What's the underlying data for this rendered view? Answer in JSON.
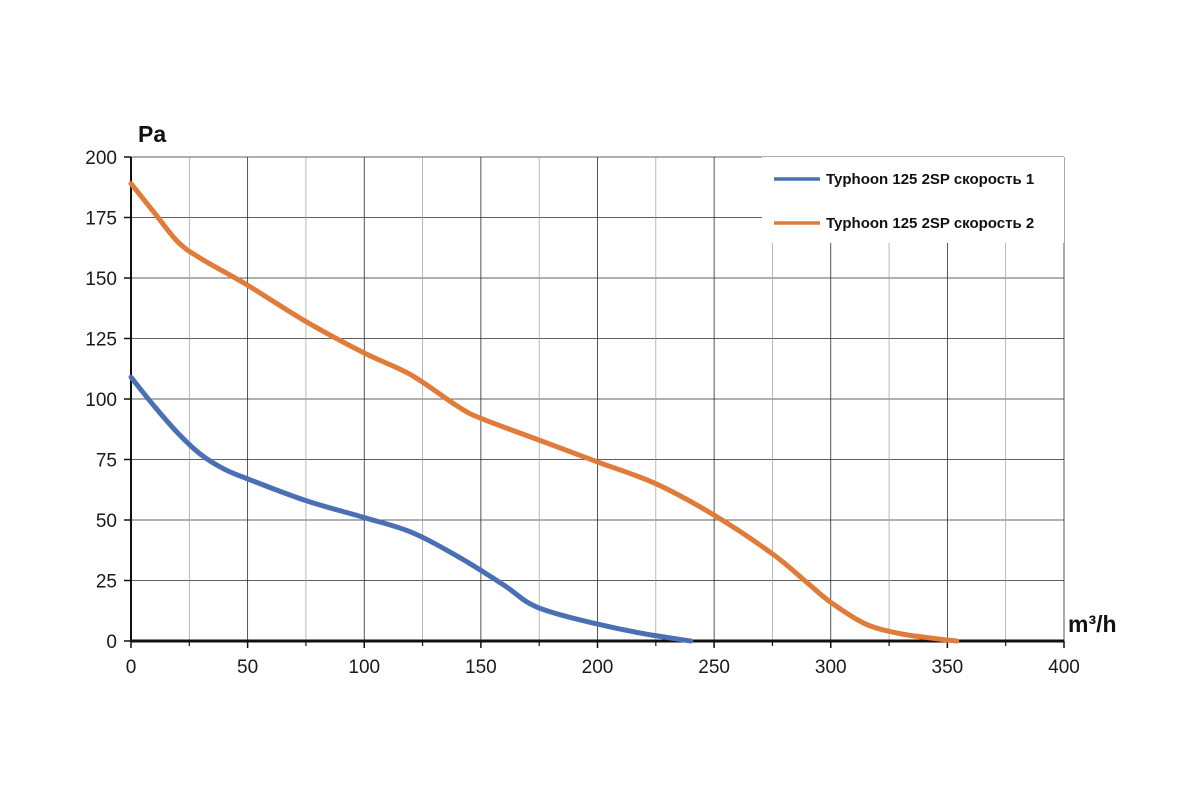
{
  "chart_data": {
    "type": "line",
    "xlabel": "m³/h",
    "ylabel": "Pa",
    "xlim": [
      0,
      400
    ],
    "ylim": [
      0,
      200
    ],
    "x_ticks": [
      0,
      50,
      100,
      150,
      200,
      250,
      300,
      350,
      400
    ],
    "y_ticks": [
      0,
      25,
      50,
      75,
      100,
      125,
      150,
      175,
      200
    ],
    "grid": true,
    "legend_position": "top-right",
    "series": [
      {
        "name": "Typhoon 125 2SP скорость 1",
        "color": "#4a6fb5",
        "points": [
          [
            0,
            109
          ],
          [
            10,
            97
          ],
          [
            20,
            86
          ],
          [
            30,
            77
          ],
          [
            40,
            71
          ],
          [
            50,
            67
          ],
          [
            75,
            58
          ],
          [
            100,
            51
          ],
          [
            120,
            45
          ],
          [
            140,
            35
          ],
          [
            160,
            23
          ],
          [
            170,
            16
          ],
          [
            180,
            12
          ],
          [
            200,
            7
          ],
          [
            220,
            3
          ],
          [
            240,
            0
          ]
        ]
      },
      {
        "name": "Typhoon 125 2SP скорость 2",
        "color": "#e07b39",
        "points": [
          [
            0,
            189
          ],
          [
            10,
            177
          ],
          [
            20,
            165
          ],
          [
            30,
            158
          ],
          [
            50,
            147
          ],
          [
            75,
            132
          ],
          [
            100,
            119
          ],
          [
            120,
            110
          ],
          [
            140,
            97
          ],
          [
            150,
            92
          ],
          [
            175,
            83
          ],
          [
            200,
            74
          ],
          [
            225,
            65
          ],
          [
            250,
            52
          ],
          [
            275,
            36
          ],
          [
            290,
            24
          ],
          [
            300,
            16
          ],
          [
            315,
            7
          ],
          [
            330,
            3
          ],
          [
            345,
            1
          ],
          [
            354,
            0
          ]
        ]
      }
    ]
  }
}
